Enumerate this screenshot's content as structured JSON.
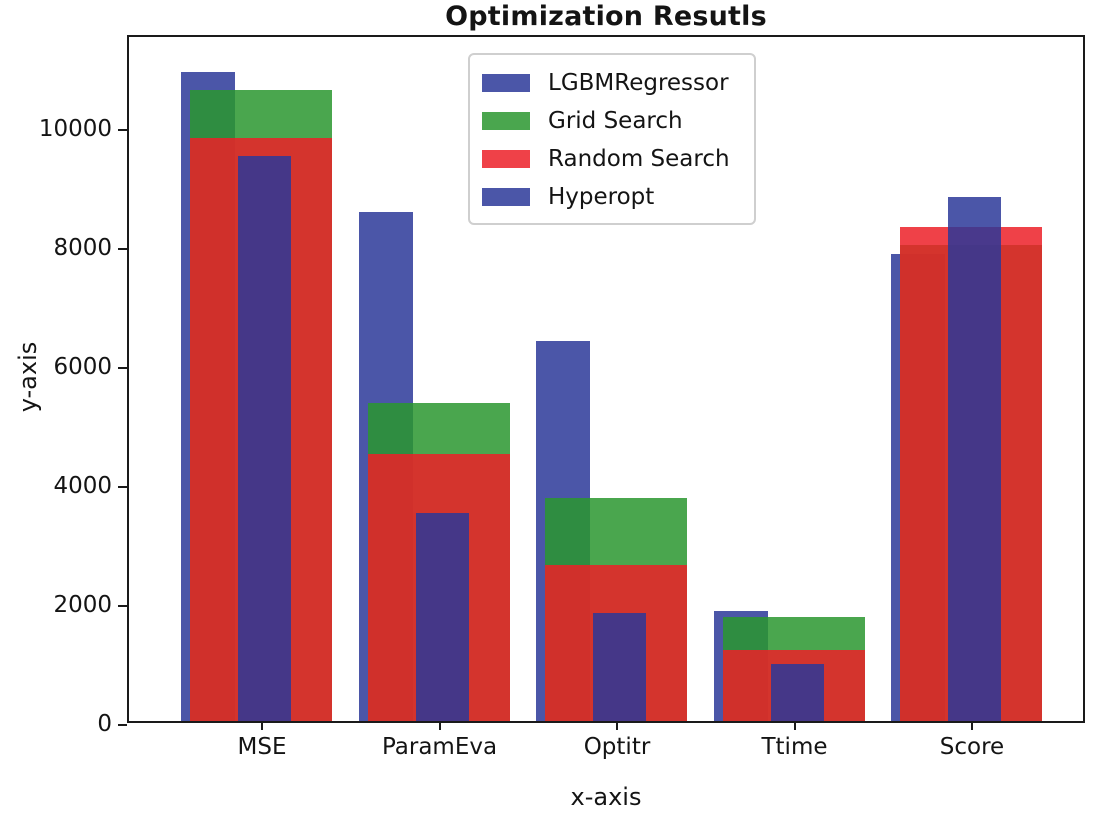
{
  "figure": {
    "title": "Optimization Resutls",
    "xlabel": "x-axis",
    "ylabel": "y-axis"
  },
  "chart_data": {
    "type": "bar",
    "title": "Optimization Resutls",
    "xlabel": "x-axis",
    "ylabel": "y-axis",
    "categories": [
      "MSE",
      "ParamEva",
      "Optitr",
      "Ttime",
      "Score"
    ],
    "series": [
      {
        "name": "LGBMRegressor",
        "color": "rgba(44,56,153,0.85)",
        "values": [
          10900,
          8550,
          6380,
          1850,
          7850
        ]
      },
      {
        "name": "Grid Search",
        "color": "rgba(42,150,47,0.85)",
        "values": [
          10600,
          5350,
          3740,
          1750,
          8000
        ]
      },
      {
        "name": "Random Search",
        "color": "rgba(236,32,40,0.85)",
        "values": [
          9800,
          4490,
          2630,
          1200,
          8300
        ]
      },
      {
        "name": "Hyperopt",
        "color": "rgba(44,56,153,0.85)",
        "values": [
          9500,
          3500,
          1820,
          950,
          8800
        ]
      }
    ],
    "yticks": [
      0,
      2000,
      4000,
      6000,
      8000,
      10000
    ],
    "ylim": [
      0,
      11560
    ],
    "bar_alpha": 0.85,
    "overlapping_bars": true,
    "grid": false,
    "legend_position": "upper center",
    "legend_entries": [
      "LGBMRegressor",
      "Grid Search",
      "Random Search",
      "Hyperopt"
    ]
  }
}
